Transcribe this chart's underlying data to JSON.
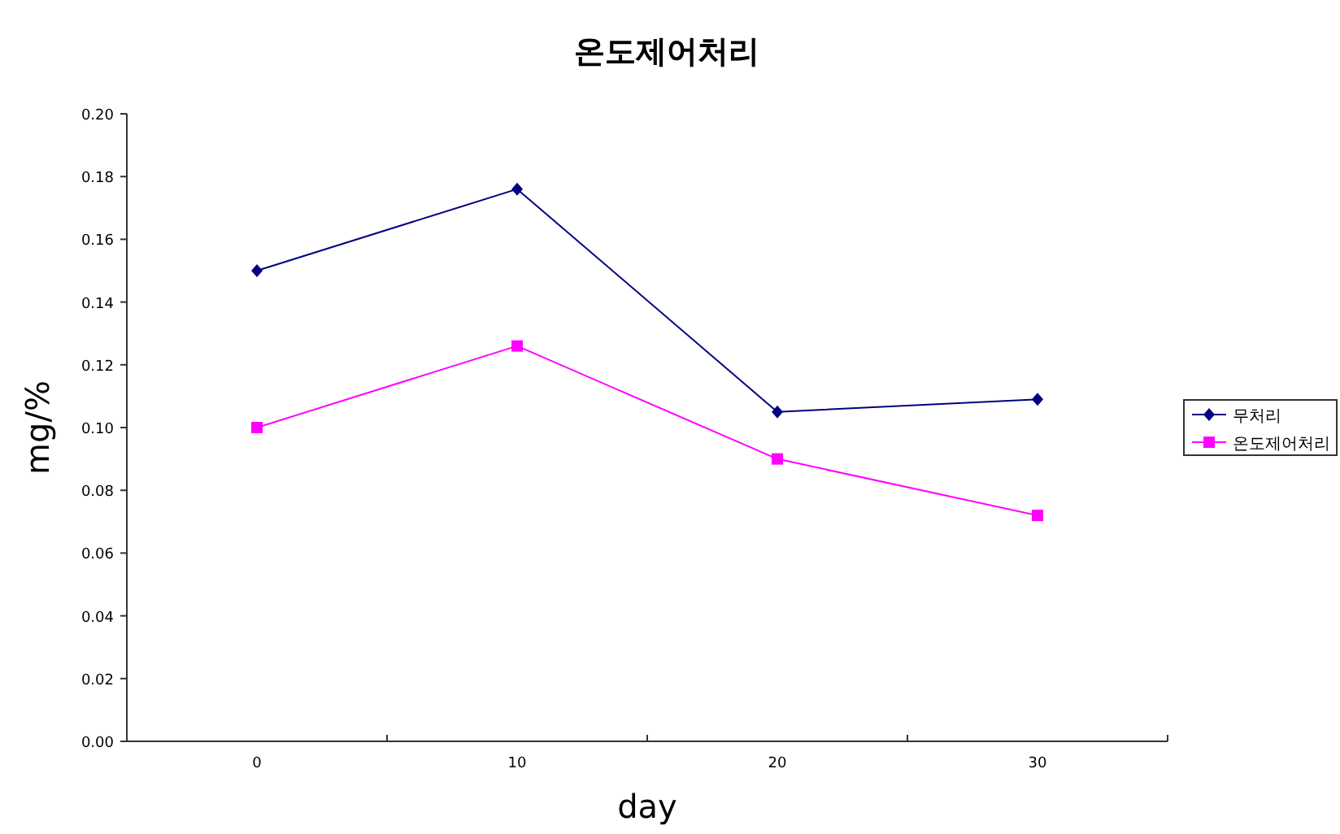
{
  "chart_data": {
    "type": "line",
    "title": "온도제어처리",
    "xlabel": "day",
    "ylabel": "mg/%",
    "categories": [
      "0",
      "10",
      "20",
      "30"
    ],
    "series": [
      {
        "name": "무처리",
        "color": "#000080",
        "marker": "diamond",
        "values": [
          0.15,
          0.176,
          0.105,
          0.109
        ]
      },
      {
        "name": "온도제어처리",
        "color": "#ff00ff",
        "marker": "square",
        "values": [
          0.1,
          0.126,
          0.09,
          0.072
        ]
      }
    ],
    "ylim": [
      0,
      0.2
    ],
    "yticks": [
      {
        "value": 0,
        "label": "0.00"
      },
      {
        "value": 0.02,
        "label": "0.02"
      },
      {
        "value": 0.04,
        "label": "0.04"
      },
      {
        "value": 0.06,
        "label": "0.06"
      },
      {
        "value": 0.08,
        "label": "0.08"
      },
      {
        "value": 0.1,
        "label": "0.10"
      },
      {
        "value": 0.12,
        "label": "0.12"
      },
      {
        "value": 0.14,
        "label": "0.14"
      },
      {
        "value": 0.16,
        "label": "0.16"
      },
      {
        "value": 0.18,
        "label": "0.18"
      },
      {
        "value": 0.2,
        "label": "0.20"
      }
    ],
    "grid": false,
    "legend": "right"
  }
}
